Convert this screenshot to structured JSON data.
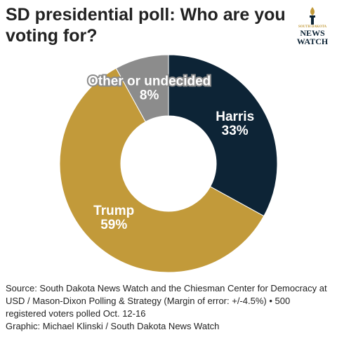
{
  "chart_data": {
    "type": "donut",
    "title": "SD presidential poll: Who are you voting for?",
    "categories": [
      "Harris",
      "Trump",
      "Other or undecided"
    ],
    "values": [
      33,
      59,
      8
    ],
    "value_labels": [
      "33%",
      "59%",
      "8%"
    ],
    "colors": [
      "#0d2436",
      "#c29a3a",
      "#8c8c8c"
    ]
  },
  "logo": {
    "lines": [
      "SOUTH DAKOTA",
      "NEWS",
      "WATCH"
    ]
  },
  "footer": {
    "source": "Source: South Dakota News Watch and the Chiesman Center for Democracy at USD / Mason-Dixon Polling & Strategy (Margin of error: +/-4.5%) • 500 registered voters polled Oct. 12-16",
    "credit": "Graphic: Michael Klinski / South Dakota News Watch"
  }
}
